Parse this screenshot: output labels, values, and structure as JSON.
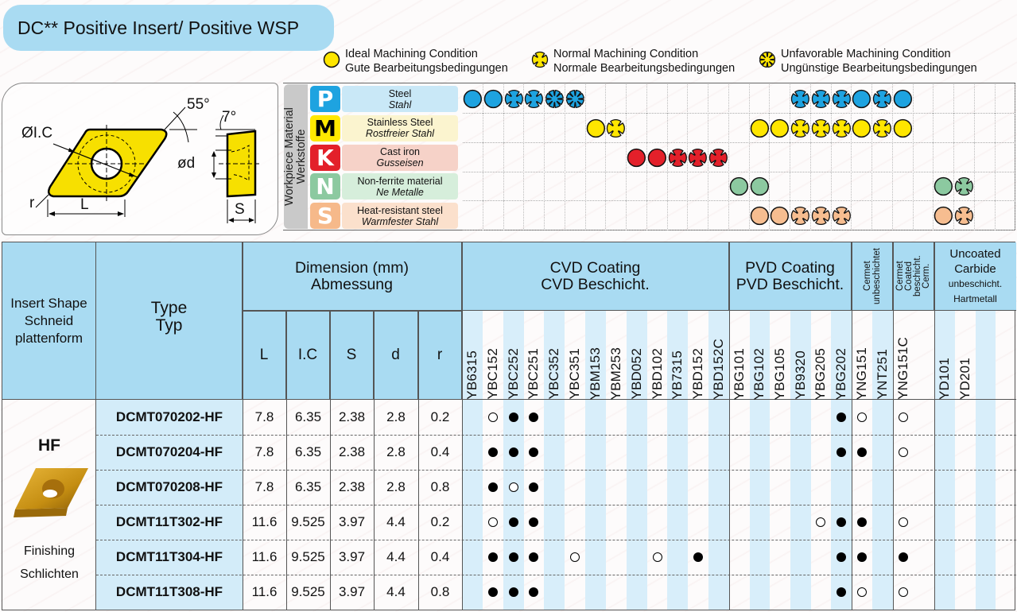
{
  "title": "DC** Positive Insert/ Positive WSP",
  "legend": [
    {
      "kind": "ideal",
      "en": "Ideal Machining Condition",
      "de": "Gute Bearbeitungsbedingungen"
    },
    {
      "kind": "normal",
      "en": "Normal Machining Condition",
      "de": "Normale Bearbeitungsbedingungen"
    },
    {
      "kind": "unfavorable",
      "en": "Unfavorable Machining Condition",
      "de": "Ungünstige Bearbeitungsbedingungen"
    }
  ],
  "diagram": {
    "angle_label": "55°",
    "clearance_label": "7°",
    "ic_label": "ØI.C",
    "d_label": "ød",
    "r_label": "r",
    "l_label": "L",
    "s_label": "S"
  },
  "workpiece_label": {
    "en": "Workpiece Material",
    "de": "Werkstoffe"
  },
  "materials": [
    {
      "letter": "P",
      "en": "Steel",
      "de": "Stahl",
      "letter_color": "#1ea3e0",
      "text_color": "#ffffff",
      "bg": "#c9e8f7",
      "dot_color": "#1ea3e0",
      "cells": {
        "0": "ideal",
        "1": "ideal",
        "2": "normal",
        "3": "normal",
        "4": "unfavorable",
        "5": "unfavorable",
        "16": "normal",
        "17": "normal",
        "18": "normal",
        "19": "ideal",
        "20": "normal",
        "21": "ideal"
      }
    },
    {
      "letter": "M",
      "en": "Stainless Steel",
      "de": "Rostfreier Stahl",
      "letter_color": "#ffe800",
      "text_color": "#000000",
      "bg": "#fbf4cf",
      "dot_color": "#ffe600",
      "cells": {
        "6": "ideal",
        "7": "normal",
        "14": "ideal",
        "15": "ideal",
        "16": "normal",
        "17": "normal",
        "18": "normal",
        "19": "ideal",
        "20": "normal",
        "21": "ideal"
      }
    },
    {
      "letter": "K",
      "en": "Cast iron",
      "de": "Gusseisen",
      "letter_color": "#e3202a",
      "text_color": "#ffffff",
      "bg": "#f6d2c8",
      "dot_color": "#e3202a",
      "cells": {
        "8": "ideal",
        "9": "ideal",
        "10": "normal",
        "11": "normal",
        "12": "normal"
      }
    },
    {
      "letter": "N",
      "en": "Non-ferrite material",
      "de": "Ne Metalle",
      "letter_color": "#8cc9a0",
      "text_color": "#ffffff",
      "bg": "#d6eedb",
      "dot_color": "#8cc9a0",
      "cells": {
        "13": "ideal",
        "14": "ideal",
        "23": "ideal",
        "24": "normal"
      }
    },
    {
      "letter": "S",
      "en": "Heat-resistant steel",
      "de": "Warmfester Stahl",
      "letter_color": "#f6b98a",
      "text_color": "#ffffff",
      "bg": "#fbe0cc",
      "dot_color": "#f6bd90",
      "cells": {
        "14": "ideal",
        "15": "ideal",
        "16": "normal",
        "17": "normal",
        "18": "normal",
        "23": "ideal",
        "24": "normal"
      }
    }
  ],
  "table": {
    "headers": {
      "insert_shape": [
        "Insert Shape",
        "Schneid",
        "plattenform"
      ],
      "type": [
        "Type",
        "Typ"
      ],
      "dimension": [
        "Dimension (mm)",
        "Abmessung"
      ],
      "dims": [
        "L",
        "I.C",
        "S",
        "d",
        "r"
      ],
      "groups": [
        {
          "key": "cvd",
          "lines": [
            "CVD Coating",
            "CVD Beschicht."
          ]
        },
        {
          "key": "pvd",
          "lines": [
            "PVD Coating",
            "PVD Beschicht."
          ]
        },
        {
          "key": "cermet",
          "lines": [
            "Cermet",
            "unbeschichtet"
          ]
        },
        {
          "key": "cermet_coated",
          "lines": [
            "Cermet",
            "Coated",
            "beschicht. Cerm."
          ]
        },
        {
          "key": "uncoated",
          "lines": [
            "Uncoated",
            "Carbide",
            "unbeschicht.",
            "Hartmetall"
          ]
        }
      ]
    },
    "grades": [
      "YB6315",
      "YBC152",
      "YBC252",
      "YBC251",
      "YBC352",
      "YBC351",
      "YBM153",
      "YBM253",
      "YBD052",
      "YBD102",
      "YB7315",
      "YBD152",
      "YBD152C",
      "YBG101",
      "YBG102",
      "YBG105",
      "YB9320",
      "YBG205",
      "YBG202",
      "YNG151",
      "YNT251",
      "YNG151C",
      "YD101",
      "YD201",
      "",
      ""
    ],
    "shape": {
      "code": "HF",
      "en": "Finishing",
      "de": "Schlichten"
    },
    "rows": [
      {
        "type": "DCMT070202-HF",
        "dims": [
          "7.8",
          "6.35",
          "2.38",
          "2.8",
          "0.2"
        ],
        "marks": {
          "YBC152": "open",
          "YBC252": "filled",
          "YBC251": "filled",
          "YBG202": "filled",
          "YNG151": "open",
          "YNG151C": "open"
        }
      },
      {
        "type": "DCMT070204-HF",
        "dims": [
          "7.8",
          "6.35",
          "2.38",
          "2.8",
          "0.4"
        ],
        "marks": {
          "YBC152": "filled",
          "YBC252": "filled",
          "YBC251": "filled",
          "YBG202": "filled",
          "YNG151": "filled",
          "YNG151C": "open"
        }
      },
      {
        "type": "DCMT070208-HF",
        "dims": [
          "7.8",
          "6.35",
          "2.38",
          "2.8",
          "0.8"
        ],
        "marks": {
          "YBC152": "filled",
          "YBC252": "open",
          "YBC251": "filled"
        }
      },
      {
        "type": "DCMT11T302-HF",
        "dims": [
          "11.6",
          "9.525",
          "3.97",
          "4.4",
          "0.2"
        ],
        "marks": {
          "YBC152": "open",
          "YBC252": "filled",
          "YBC251": "filled",
          "YBG205": "open",
          "YBG202": "filled",
          "YNG151": "filled",
          "YNG151C": "open"
        }
      },
      {
        "type": "DCMT11T304-HF",
        "dims": [
          "11.6",
          "9.525",
          "3.97",
          "4.4",
          "0.4"
        ],
        "marks": {
          "YBC152": "filled",
          "YBC252": "filled",
          "YBC251": "filled",
          "YBC351": "open",
          "YBD102": "open",
          "YBD152": "filled",
          "YBG202": "filled",
          "YNG151": "filled",
          "YNG151C": "filled"
        }
      },
      {
        "type": "DCMT11T308-HF",
        "dims": [
          "11.6",
          "9.525",
          "3.97",
          "4.4",
          "0.8"
        ],
        "marks": {
          "YBC152": "filled",
          "YBC252": "filled",
          "YBC251": "filled",
          "YBG202": "filled",
          "YNG151": "open",
          "YNG151C": "open"
        }
      }
    ]
  }
}
